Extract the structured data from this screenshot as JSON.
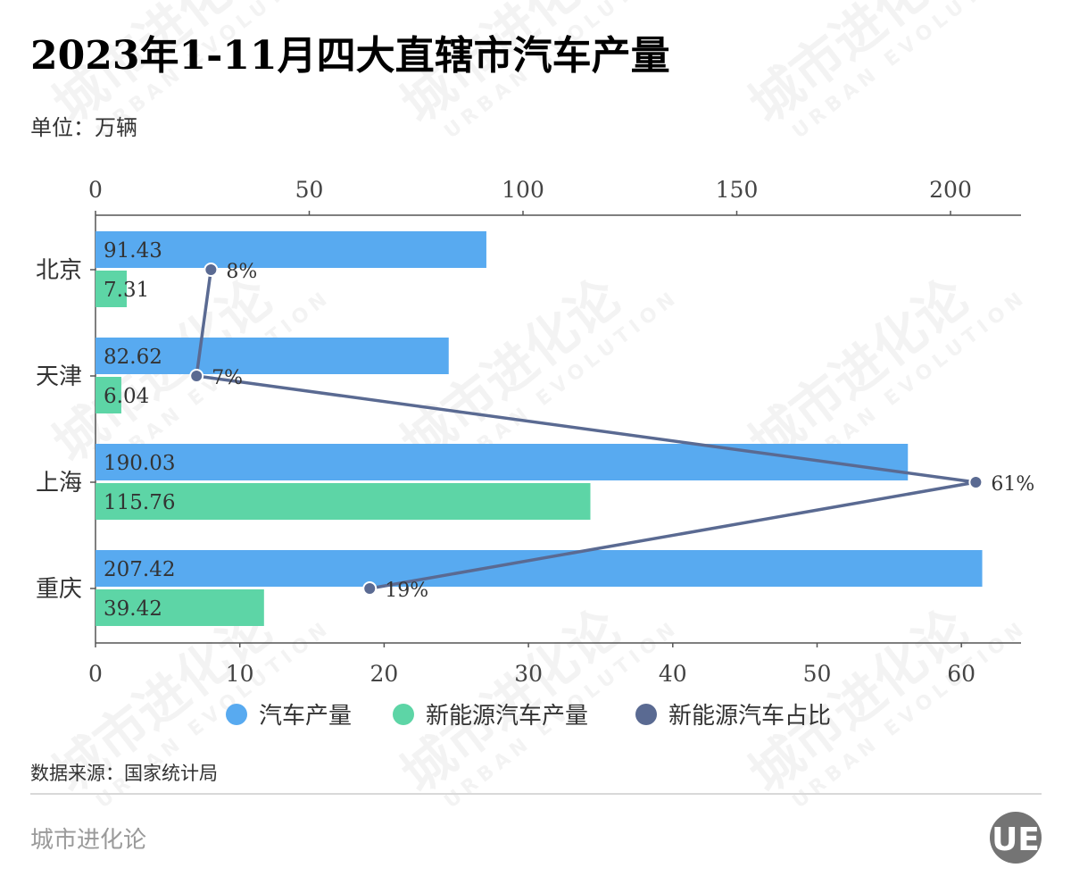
{
  "header": {
    "title": "2023年1-11月四大直辖市汽车产量",
    "unit": "单位：万辆"
  },
  "chart_data": {
    "type": "bar",
    "categories": [
      "北京",
      "天津",
      "上海",
      "重庆"
    ],
    "top_axis": {
      "ticks": [
        "0",
        "50",
        "100",
        "150",
        "200"
      ],
      "range": [
        0,
        217.5
      ]
    },
    "bottom_axis": {
      "ticks": [
        "0",
        "10",
        "20",
        "30",
        "40",
        "50",
        "60"
      ],
      "range": [
        0,
        64
      ]
    },
    "series": [
      {
        "name": "汽车产量",
        "axis": "top",
        "color": "#58aaf0",
        "values": [
          91.43,
          82.62,
          190.03,
          207.42
        ],
        "labels": [
          "91.43",
          "82.62",
          "190.03",
          "207.42"
        ]
      },
      {
        "name": "新能源汽车产量",
        "axis": "top",
        "color": "#5dd5a6",
        "values": [
          7.31,
          6.04,
          115.76,
          39.42
        ],
        "labels": [
          "7.31",
          "6.04",
          "115.76",
          "39.42"
        ]
      },
      {
        "name": "新能源汽车占比",
        "axis": "bottom",
        "type": "line",
        "color": "#5a6a92",
        "values": [
          8,
          7,
          61,
          19
        ],
        "labels": [
          "8%",
          "7%",
          "61%",
          "19%"
        ]
      }
    ],
    "legend_position": "bottom"
  },
  "footer": {
    "source": "数据来源：国家统计局",
    "brand": "城市进化论",
    "logo_text": "UE"
  },
  "watermark": {
    "cn": "城市进化论",
    "en": "URBAN EVOLUTION"
  }
}
